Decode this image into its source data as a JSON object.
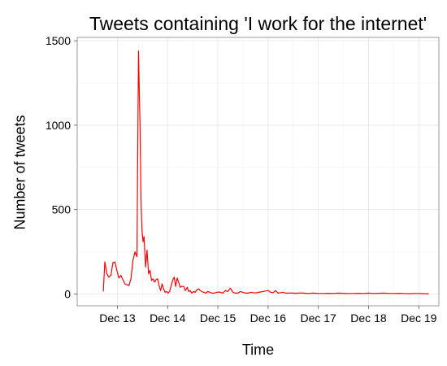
{
  "chart_data": {
    "type": "line",
    "title": "Tweets containing 'I work for the internet'",
    "xlabel": "Time",
    "ylabel": "Number of tweets",
    "x_ticks": [
      "Dec 13",
      "Dec 14",
      "Dec 15",
      "Dec 16",
      "Dec 17",
      "Dec 18",
      "Dec 19"
    ],
    "x_tick_days": [
      13,
      14,
      15,
      16,
      17,
      18,
      19
    ],
    "xlim": [
      12.2,
      19.4
    ],
    "y_ticks": [
      0,
      500,
      1000,
      1500
    ],
    "ylim": [
      -70,
      1520
    ],
    "grid": true,
    "series": [
      {
        "color": "#ff0000",
        "x": [
          12.72,
          12.75,
          12.79,
          12.83,
          12.87,
          12.91,
          12.95,
          12.99,
          13.03,
          13.07,
          13.11,
          13.15,
          13.19,
          13.23,
          13.27,
          13.31,
          13.35,
          13.39,
          13.42,
          13.45,
          13.47,
          13.49,
          13.51,
          13.53,
          13.56,
          13.59,
          13.62,
          13.65,
          13.68,
          13.71,
          13.74,
          13.77,
          13.8,
          13.83,
          13.86,
          13.89,
          13.92,
          13.95,
          13.98,
          14.01,
          14.04,
          14.07,
          14.1,
          14.13,
          14.16,
          14.19,
          14.22,
          14.25,
          14.28,
          14.32,
          14.35,
          14.39,
          14.42,
          14.45,
          14.48,
          14.52,
          14.55,
          14.58,
          14.62,
          14.65,
          14.68,
          14.72,
          14.76,
          14.8,
          14.84,
          14.88,
          14.92,
          14.96,
          15.0,
          15.05,
          15.1,
          15.15,
          15.2,
          15.25,
          15.3,
          15.35,
          15.4,
          15.45,
          15.5,
          15.55,
          15.6,
          15.65,
          15.7,
          15.75,
          15.8,
          15.85,
          15.9,
          15.95,
          16.0,
          16.05,
          16.1,
          16.15,
          16.2,
          16.25,
          16.3,
          16.35,
          16.4,
          16.45,
          16.5,
          16.55,
          16.6,
          16.65,
          16.7,
          16.75,
          16.8,
          16.85,
          16.9,
          16.95,
          17.0,
          17.1,
          17.2,
          17.3,
          17.4,
          17.5,
          17.6,
          17.7,
          17.8,
          17.9,
          18.0,
          18.1,
          18.2,
          18.3,
          18.4,
          18.5,
          18.6,
          18.7,
          18.8,
          18.9,
          19.0,
          19.1,
          19.2
        ],
        "values": [
          15,
          190,
          120,
          100,
          110,
          185,
          190,
          140,
          95,
          110,
          85,
          60,
          55,
          50,
          90,
          200,
          250,
          220,
          1440,
          1000,
          550,
          380,
          310,
          340,
          160,
          260,
          120,
          140,
          80,
          90,
          70,
          85,
          90,
          50,
          20,
          60,
          30,
          10,
          15,
          5,
          15,
          50,
          80,
          100,
          45,
          95,
          70,
          40,
          45,
          45,
          20,
          40,
          15,
          20,
          5,
          15,
          10,
          25,
          30,
          20,
          15,
          10,
          5,
          15,
          10,
          5,
          5,
          8,
          12,
          10,
          5,
          20,
          15,
          35,
          10,
          5,
          5,
          15,
          10,
          5,
          5,
          10,
          8,
          6,
          10,
          12,
          15,
          18,
          20,
          10,
          8,
          20,
          5,
          8,
          10,
          5,
          5,
          6,
          5,
          4,
          5,
          6,
          5,
          4,
          3,
          4,
          5,
          4,
          3,
          3,
          4,
          3,
          5,
          4,
          3,
          3,
          4,
          3,
          5,
          3,
          4,
          5,
          3,
          3,
          4,
          3,
          2,
          3,
          3,
          2,
          2
        ]
      }
    ]
  }
}
